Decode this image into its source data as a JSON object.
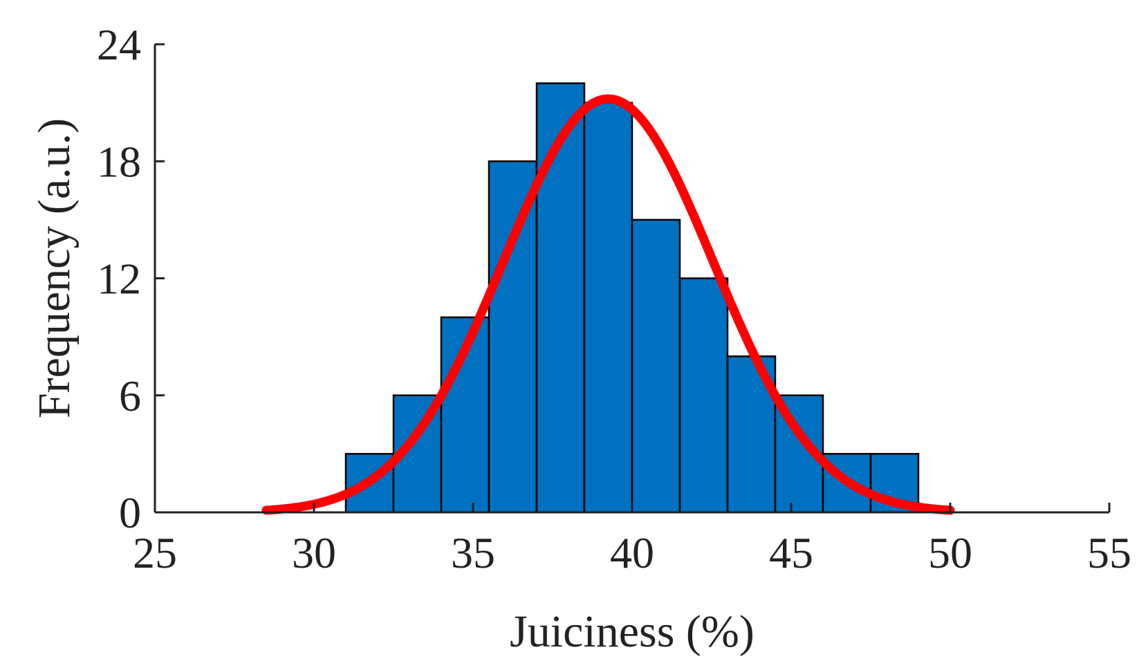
{
  "chart_data": {
    "type": "bar",
    "title": "",
    "xlabel": "Juiciness (%)",
    "ylabel": "Frequency  (a.u.)",
    "xlim": [
      25,
      55
    ],
    "ylim": [
      0,
      24
    ],
    "x_ticks": [
      "25",
      "30",
      "35",
      "40",
      "45",
      "50",
      "55"
    ],
    "y_ticks": [
      "0",
      "6",
      "12",
      "18",
      "24"
    ],
    "grid": false,
    "legend": "none",
    "bin_edges": [
      31,
      32.5,
      34,
      35.5,
      37,
      38.5,
      40,
      41.5,
      43,
      44.5,
      46,
      47.5,
      49
    ],
    "series": [
      {
        "type": "bar",
        "values": [
          3,
          6,
          10,
          18,
          22,
          21,
          15,
          12,
          8,
          6,
          3,
          3
        ]
      },
      {
        "type": "line",
        "fit": "normal",
        "x_range": [
          28.5,
          50
        ],
        "peak_x": 39.25,
        "peak_y": 21.2,
        "sigma": 3.3
      }
    ],
    "colors": {
      "bar_fill": "#0070C0",
      "bar_edge": "#000000",
      "fit_line": "#FF0000",
      "axis": "#222222"
    }
  }
}
